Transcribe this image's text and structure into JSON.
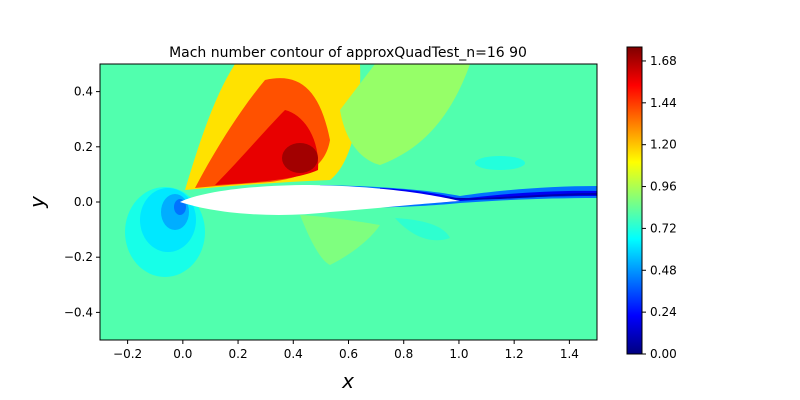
{
  "chart_data": {
    "type": "heatmap",
    "title": "Mach number contour of approxQuadTest_n=16 90",
    "xlabel": "x",
    "ylabel": "y",
    "xlim": [
      -0.3,
      1.5
    ],
    "ylim": [
      -0.5,
      0.5
    ],
    "xticks": [
      "−0.2",
      "0.0",
      "0.2",
      "0.4",
      "0.6",
      "0.8",
      "1.0",
      "1.2",
      "1.4"
    ],
    "xtick_values": [
      -0.2,
      0.0,
      0.2,
      0.4,
      0.6,
      0.8,
      1.0,
      1.2,
      1.4
    ],
    "yticks": [
      "−0.4",
      "−0.2",
      "0.0",
      "0.2",
      "0.4"
    ],
    "ytick_values": [
      -0.4,
      -0.2,
      0.0,
      0.2,
      0.4
    ],
    "colorbar": {
      "colormap": "jet",
      "range": [
        0.0,
        1.76
      ],
      "ticks": [
        "0.00",
        "0.24",
        "0.48",
        "0.72",
        "0.96",
        "1.20",
        "1.44",
        "1.68"
      ],
      "tick_values": [
        0.0,
        0.24,
        0.48,
        0.72,
        0.96,
        1.2,
        1.44,
        1.68
      ]
    },
    "freestream_mach": 0.8,
    "regions": [
      {
        "description": "stagnation low-speed pocket",
        "x": -0.08,
        "y": -0.05,
        "mach": 0.5
      },
      {
        "description": "supersonic pocket peak",
        "x": 0.42,
        "y": 0.12,
        "mach": 1.72
      },
      {
        "description": "wake",
        "x": 1.1,
        "y": 0.02,
        "mach": 0.3
      }
    ]
  },
  "colors": {
    "jet_stops": [
      "#00007f",
      "#0000ff",
      "#007fff",
      "#00ffff",
      "#7fff7f",
      "#ffff00",
      "#ff7f00",
      "#ff0000",
      "#7f0000"
    ]
  }
}
